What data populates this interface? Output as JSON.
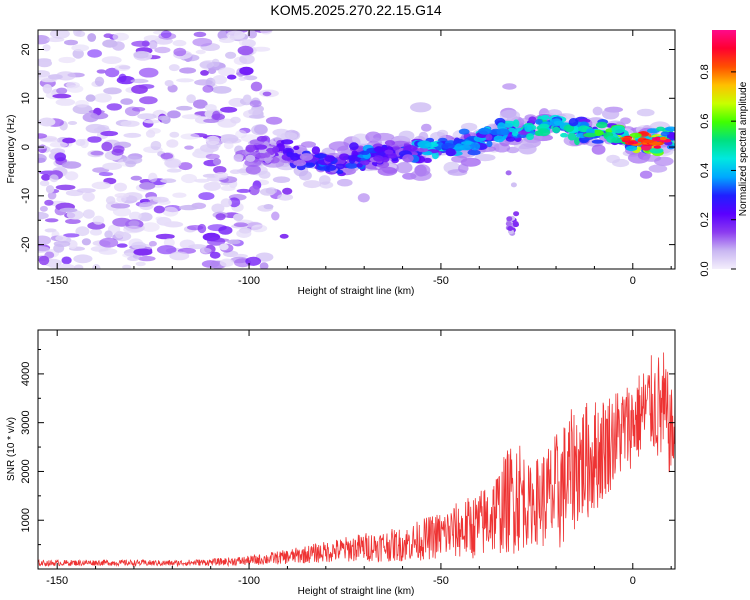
{
  "title": "KOM5.2025.270.22.15.G14",
  "chart_data": [
    {
      "type": "heatmap",
      "name": "spectrogram",
      "xlabel": "Height of straight line (km)",
      "ylabel": "Frequency (Hz)",
      "xlim": [
        -155,
        11
      ],
      "ylim": [
        -25,
        24
      ],
      "x_ticks": [
        -150,
        -100,
        -50,
        0
      ],
      "y_ticks": [
        -20,
        -10,
        0,
        10,
        20
      ],
      "colorbar": {
        "label": "Normalized spectral amplitude",
        "range": [
          0,
          0.97
        ],
        "ticks": [
          0,
          0.2,
          0.4,
          0.6,
          0.8
        ],
        "tick_labels": [
          "0.0",
          "0.2",
          "0.4",
          "0.6",
          "0.8"
        ],
        "colors": [
          "#f4effc",
          "#c9b6f2",
          "#8c3cf0",
          "#5a00ff",
          "#2020ff",
          "#00a8ff",
          "#00e8e0",
          "#00e080",
          "#40ff00",
          "#c8ff00",
          "#ffc000",
          "#ff5000",
          "#ff0030",
          "#ff0a8a"
        ]
      },
      "ridge": {
        "description": "signal frequency trend vs height",
        "x": [
          -100,
          -92,
          -85,
          -80,
          -75,
          -70,
          -65,
          -60,
          -55,
          -50,
          -45,
          -40,
          -35,
          -30,
          -25,
          -20,
          -15,
          -10,
          -5,
          0,
          5,
          10
        ],
        "freq": [
          -1.5,
          -1.0,
          -2.5,
          -3.5,
          -3.0,
          -2.0,
          -1.5,
          -1.0,
          -0.5,
          0.0,
          0.5,
          1.5,
          3.0,
          3.5,
          4.0,
          5.0,
          4.0,
          3.0,
          2.5,
          1.0,
          0.8,
          1.5
        ],
        "amplitude": [
          0.15,
          0.22,
          0.3,
          0.32,
          0.3,
          0.35,
          0.3,
          0.28,
          0.4,
          0.45,
          0.35,
          0.4,
          0.42,
          0.45,
          0.5,
          0.45,
          0.5,
          0.55,
          0.6,
          0.85,
          0.9,
          0.5
        ]
      }
    },
    {
      "type": "line",
      "name": "snr",
      "xlabel": "Height of straight line (km)",
      "ylabel": "SNR (10 * v/v)",
      "xlim": [
        -155,
        11
      ],
      "ylim": [
        0,
        4900
      ],
      "x_ticks": [
        -150,
        -100,
        -50,
        0
      ],
      "y_ticks": [
        1000,
        2000,
        3000,
        4000
      ],
      "color": "#ee3333",
      "envelope": {
        "x": [
          -155,
          -140,
          -120,
          -110,
          -100,
          -90,
          -80,
          -70,
          -60,
          -50,
          -40,
          -35,
          -30,
          -27,
          -25,
          -20,
          -15,
          -10,
          -5,
          0,
          5,
          8,
          10
        ],
        "mean": [
          120,
          130,
          120,
          140,
          170,
          250,
          350,
          450,
          500,
          700,
          900,
          1200,
          1600,
          1300,
          1400,
          1500,
          2100,
          2300,
          2700,
          3000,
          3400,
          3200,
          2800
        ],
        "spread": [
          60,
          60,
          60,
          70,
          100,
          150,
          220,
          300,
          350,
          500,
          700,
          900,
          1300,
          800,
          900,
          1300,
          1300,
          1200,
          1000,
          900,
          1000,
          1300,
          900
        ]
      }
    }
  ]
}
